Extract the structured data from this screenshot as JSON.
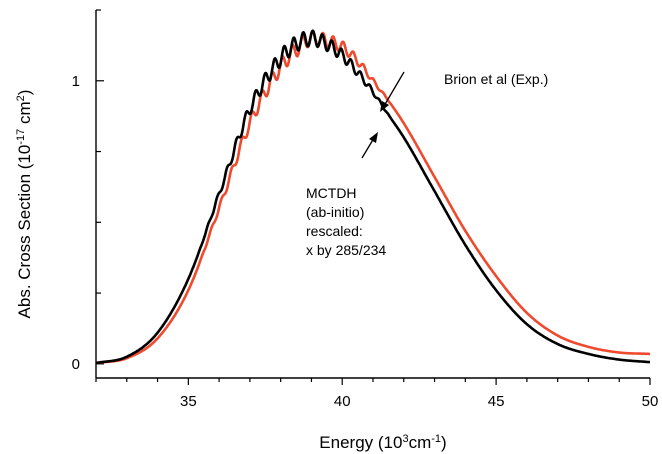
{
  "chart_data": {
    "type": "line",
    "xlabel": "Energy (10",
    "xlabel_sup": "3",
    "xlabel_unit": "cm",
    "xlabel_unit_sup": "-1",
    "xlabel_close": ")",
    "ylabel": "Abs. Cross Section (10",
    "ylabel_sup": "-17",
    "ylabel_unit": " cm",
    "ylabel_unit_sup": "2",
    "ylabel_close": ")",
    "xlim": [
      32,
      50
    ],
    "ylim": [
      -0.05,
      1.25
    ],
    "x_ticks": [
      35,
      40,
      45,
      50
    ],
    "x_tick_labels": [
      "35",
      "40",
      "45",
      "50"
    ],
    "y_ticks": [
      0,
      1
    ],
    "y_tick_labels": [
      "0",
      "1"
    ],
    "grid": false,
    "annotations": [
      {
        "id": "exp",
        "lines": [
          "Brion et al (Exp.)"
        ]
      },
      {
        "id": "theory",
        "lines": [
          "MCTDH",
          "(ab-initio)",
          "rescaled:",
          "x by 285/234"
        ]
      }
    ],
    "series": [
      {
        "color": "#ee4a2e",
        "x": [
          32,
          33,
          34,
          35,
          36,
          37,
          38,
          38.5,
          39,
          39.5,
          40,
          40.5,
          41,
          41.5,
          42,
          43,
          44,
          45,
          46,
          47,
          48,
          49,
          50
        ],
        "y": [
          0.003,
          0.02,
          0.09,
          0.26,
          0.55,
          0.85,
          1.05,
          1.11,
          1.15,
          1.14,
          1.12,
          1.07,
          1.0,
          0.93,
          0.85,
          0.66,
          0.47,
          0.31,
          0.18,
          0.1,
          0.06,
          0.04,
          0.035
        ]
      },
      {
        "color": "#000000",
        "x": [
          32,
          33,
          34,
          35,
          36,
          37,
          38,
          38.5,
          39,
          39.5,
          40,
          40.5,
          41,
          41.5,
          42,
          43,
          44,
          45,
          46,
          47,
          48,
          49,
          50
        ],
        "y": [
          0.003,
          0.025,
          0.11,
          0.3,
          0.6,
          0.9,
          1.08,
          1.13,
          1.15,
          1.13,
          1.09,
          1.03,
          0.96,
          0.88,
          0.8,
          0.61,
          0.42,
          0.26,
          0.14,
          0.07,
          0.035,
          0.015,
          0.006
        ]
      }
    ]
  }
}
